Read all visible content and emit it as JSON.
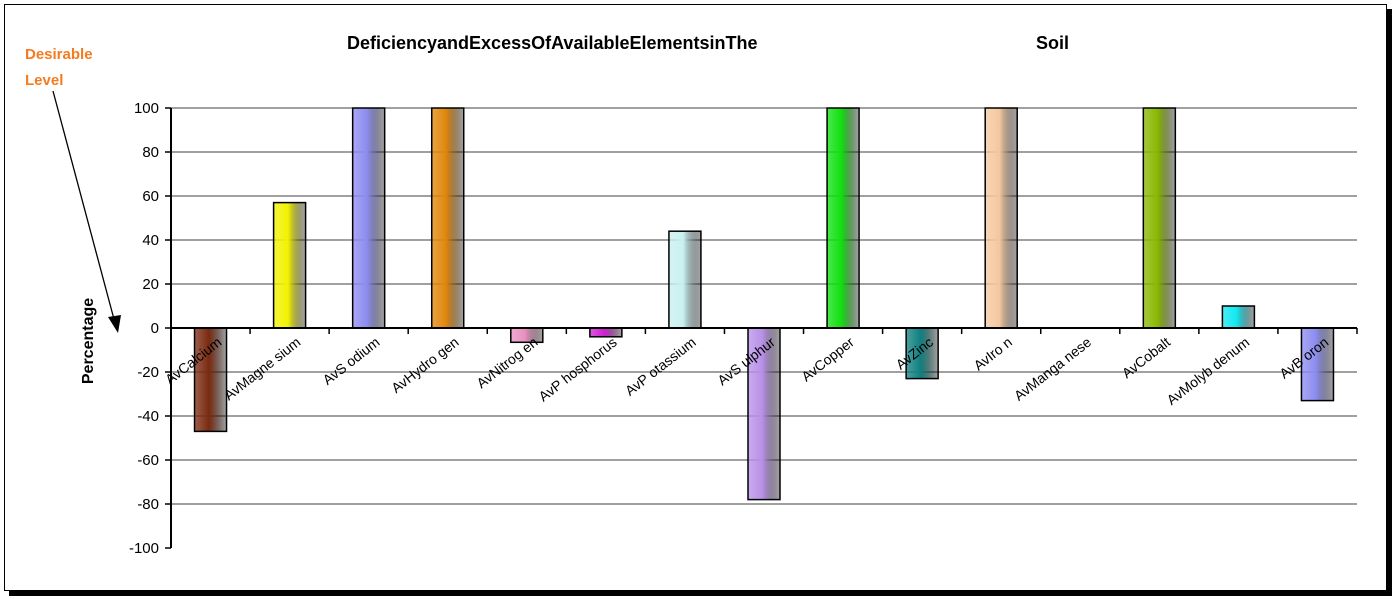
{
  "annotation": {
    "line1": "Desirable",
    "line2": "Level"
  },
  "chart_data": {
    "type": "bar",
    "title_part1": "DeficiencyandExcessOfAvailableElementsinThe",
    "title_part2": "Soil",
    "xlabel": "",
    "ylabel": "Percentage",
    "ylim": [
      -100,
      100
    ],
    "yticks": [
      100,
      80,
      60,
      40,
      20,
      0,
      -20,
      -40,
      -60,
      -80,
      -100
    ],
    "grid": true,
    "legend": "none",
    "categories": [
      "AvCalcium",
      "AvMagne sium",
      "AvS odium",
      "AvHydro gen",
      "AvNitrog en",
      "AvP hosphorus",
      "AvP otassium",
      "AvS ulphur",
      "AvCopper",
      "AvZinc",
      "AvIro n",
      "AvManga nese",
      "AvCobalt",
      "AvMolyb denum",
      "AvB oron"
    ],
    "values": [
      -47,
      57,
      100,
      100,
      -6.5,
      -4,
      44,
      -78,
      100,
      -23,
      100,
      0,
      100,
      10,
      -33
    ],
    "colors": [
      "#7a2a10",
      "#f2f200",
      "#8c8cf0",
      "#e0860a",
      "#e890c0",
      "#d020d0",
      "#c8f0f0",
      "#b890e8",
      "#10e010",
      "#108080",
      "#f4c8a0",
      "#888888",
      "#88b800",
      "#10e8f0",
      "#8c8cf0"
    ]
  }
}
